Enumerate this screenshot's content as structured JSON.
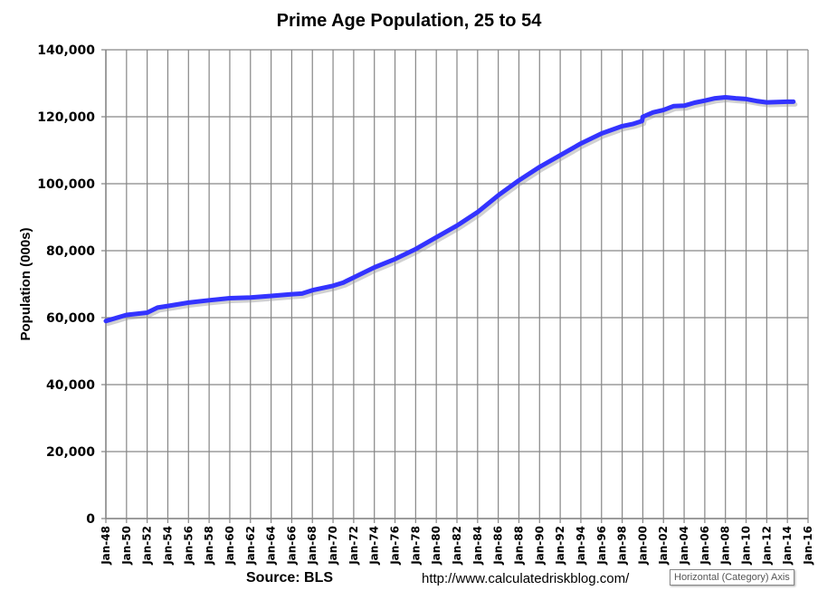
{
  "chart_data": {
    "type": "line",
    "title": "Prime Age Population, 25 to 54",
    "xlabel": "",
    "ylabel": "Population (000s)",
    "ylim": [
      0,
      140000
    ],
    "yticks": [
      "0",
      "20,000",
      "40,000",
      "60,000",
      "80,000",
      "100,000",
      "120,000",
      "140,000"
    ],
    "xlim": [
      "1948-01",
      "2016-01"
    ],
    "xticks": [
      "Jan-48",
      "Jan-50",
      "Jan-52",
      "Jan-54",
      "Jan-56",
      "Jan-58",
      "Jan-60",
      "Jan-62",
      "Jan-64",
      "Jan-66",
      "Jan-68",
      "Jan-70",
      "Jan-72",
      "Jan-74",
      "Jan-76",
      "Jan-78",
      "Jan-80",
      "Jan-82",
      "Jan-84",
      "Jan-86",
      "Jan-88",
      "Jan-90",
      "Jan-92",
      "Jan-94",
      "Jan-96",
      "Jan-98",
      "Jan-00",
      "Jan-02",
      "Jan-04",
      "Jan-06",
      "Jan-08",
      "Jan-10",
      "Jan-12",
      "Jan-14",
      "Jan-16"
    ],
    "grid": "vertical and horizontal",
    "legend": "none",
    "series_color": "#3333ff",
    "x": [
      "1948-01",
      "1950-01",
      "1952-01",
      "1953-01",
      "1954-01",
      "1956-01",
      "1958-01",
      "1960-01",
      "1962-01",
      "1964-01",
      "1966-01",
      "1967-01",
      "1968-01",
      "1970-01",
      "1971-01",
      "1972-01",
      "1974-01",
      "1976-01",
      "1978-01",
      "1980-01",
      "1982-01",
      "1984-01",
      "1986-01",
      "1988-01",
      "1990-01",
      "1992-01",
      "1994-01",
      "1996-01",
      "1998-01",
      "1999-01",
      "1999-12",
      "2000-01",
      "2001-01",
      "2002-01",
      "2003-01",
      "2004-01",
      "2005-01",
      "2006-01",
      "2007-01",
      "2008-01",
      "2009-01",
      "2010-01",
      "2011-01",
      "2012-01",
      "2013-01",
      "2014-01",
      "2014-08"
    ],
    "values": [
      59000,
      60800,
      61500,
      63000,
      63500,
      64500,
      65200,
      65800,
      66000,
      66500,
      67000,
      67200,
      68200,
      69500,
      70500,
      72000,
      75000,
      77500,
      80500,
      84000,
      87500,
      91500,
      96500,
      101000,
      105000,
      108500,
      112000,
      115000,
      117200,
      117800,
      118700,
      120000,
      121300,
      122000,
      123200,
      123300,
      124200,
      124800,
      125500,
      125800,
      125500,
      125300,
      124700,
      124300,
      124400,
      124500,
      124500
    ]
  },
  "footer": {
    "source": "Source: BLS",
    "url": "http://www.calculatedriskblog.com/",
    "tooltip": "Horizontal (Category) Axis"
  }
}
